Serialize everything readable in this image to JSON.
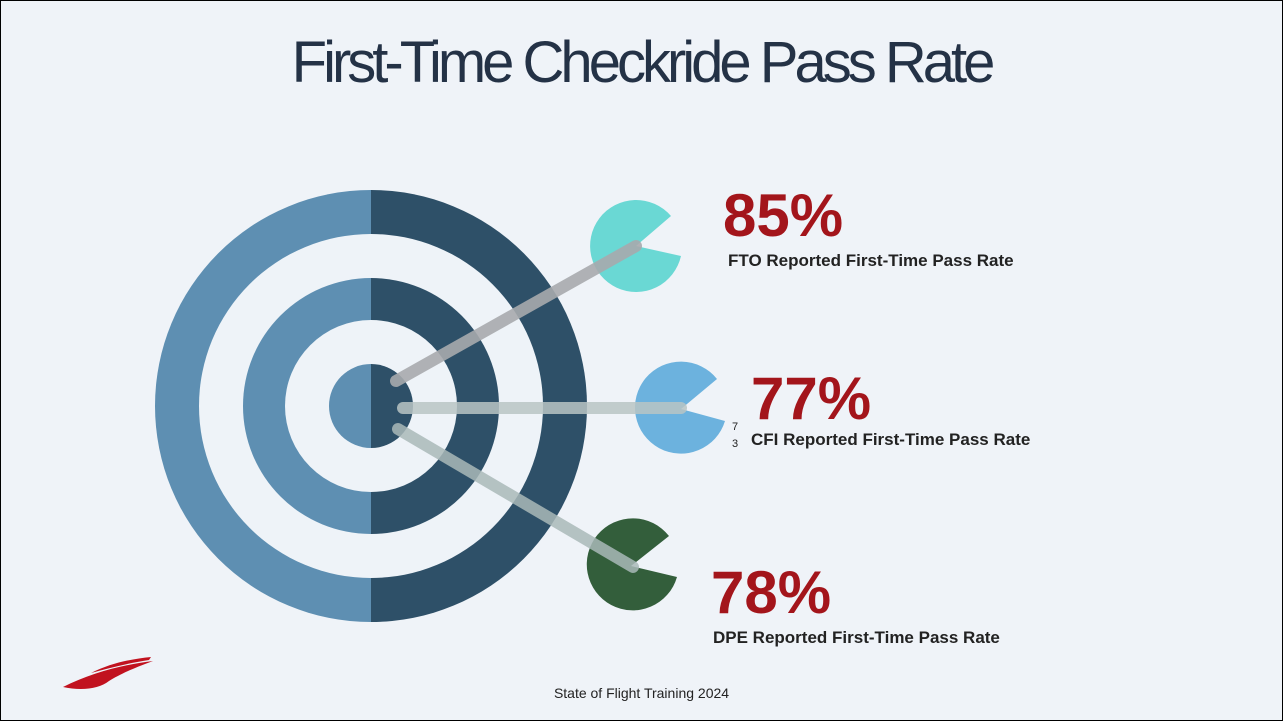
{
  "title": "First-Time Checkride Pass Rate",
  "stats": [
    {
      "value": "85%",
      "label": "FTO Reported First-Time Pass Rate"
    },
    {
      "value": "77%",
      "label": "CFI Reported First-Time Pass Rate"
    },
    {
      "value": "78%",
      "label": "DPE Reported First-Time Pass Rate"
    }
  ],
  "stray_text": [
    "7",
    "3"
  ],
  "footer": "State of Flight Training 2024"
}
